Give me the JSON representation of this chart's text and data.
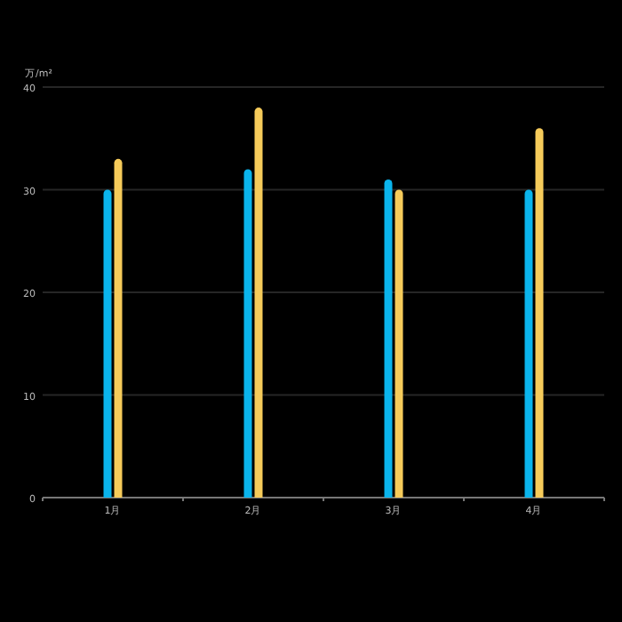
{
  "chart_data": {
    "type": "bar",
    "ylabel": "万/m²",
    "categories": [
      "1月",
      "2月",
      "3月",
      "4月"
    ],
    "series": [
      {
        "color": "#0ab4ec",
        "values": [
          30,
          32,
          31,
          30
        ]
      },
      {
        "color": "#f6cb5a",
        "values": [
          33,
          38,
          30,
          36
        ]
      }
    ],
    "ylim": [
      0,
      40
    ],
    "yticks": [
      0,
      10,
      20,
      30,
      40
    ],
    "grid": "y"
  }
}
